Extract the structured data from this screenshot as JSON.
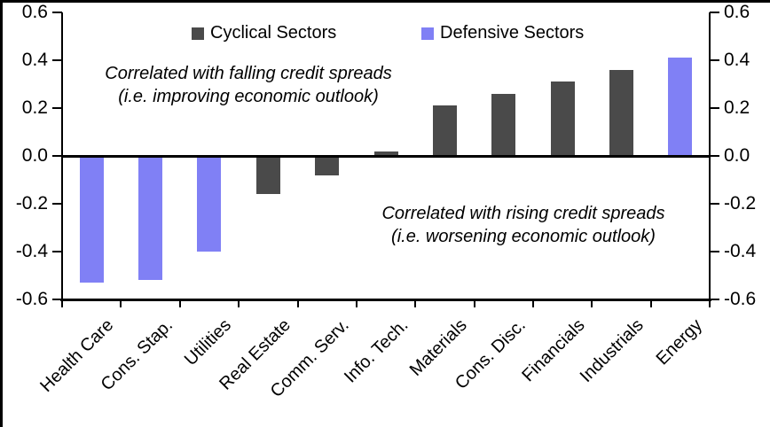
{
  "chart_data": {
    "type": "bar",
    "title": "",
    "xlabel": "",
    "ylabel": "",
    "ylim": [
      -0.6,
      0.6
    ],
    "grid": false,
    "legend_position": "top",
    "axis_color": "#000000",
    "background_color": "#ffffff",
    "yticks": [
      {
        "label": "0.6",
        "value": 0.6
      },
      {
        "label": "0.4",
        "value": 0.4
      },
      {
        "label": "0.2",
        "value": 0.2
      },
      {
        "label": "0.0",
        "value": 0.0
      },
      {
        "label": "-0.2",
        "value": -0.2
      },
      {
        "label": "-0.4",
        "value": -0.4
      },
      {
        "label": "-0.6",
        "value": -0.6
      }
    ],
    "series": [
      {
        "name": "Cyclical Sectors",
        "color": "#4a4a4a"
      },
      {
        "name": "Defensive Sectors",
        "color": "#8080f5"
      }
    ],
    "categories": [
      "Health Care",
      "Cons. Stap.",
      "Utilities",
      "Real Estate",
      "Comm. Serv.",
      "Info. Tech.",
      "Materials",
      "Cons. Disc.",
      "Financials",
      "Industrials",
      "Energy"
    ],
    "bars": [
      {
        "label": "Health Care",
        "value": -0.53,
        "group": "Defensive Sectors"
      },
      {
        "label": "Cons. Stap.",
        "value": -0.52,
        "group": "Defensive Sectors"
      },
      {
        "label": "Utilities",
        "value": -0.4,
        "group": "Defensive Sectors"
      },
      {
        "label": "Real Estate",
        "value": -0.16,
        "group": "Cyclical Sectors"
      },
      {
        "label": "Comm. Serv.",
        "value": -0.08,
        "group": "Cyclical Sectors"
      },
      {
        "label": "Info. Tech.",
        "value": 0.02,
        "group": "Cyclical Sectors"
      },
      {
        "label": "Materials",
        "value": 0.21,
        "group": "Cyclical Sectors"
      },
      {
        "label": "Cons. Disc.",
        "value": 0.26,
        "group": "Cyclical Sectors"
      },
      {
        "label": "Financials",
        "value": 0.31,
        "group": "Cyclical Sectors"
      },
      {
        "label": "Industrials",
        "value": 0.36,
        "group": "Cyclical Sectors"
      },
      {
        "label": "Energy",
        "value": 0.41,
        "group": "Defensive Sectors"
      }
    ],
    "annotations": [
      {
        "line1": "Correlated with falling credit spreads",
        "line2": "(i.e. improving economic outlook)"
      },
      {
        "line1": "Correlated with rising credit spreads",
        "line2": "(i.e. worsening economic outlook)"
      }
    ]
  }
}
